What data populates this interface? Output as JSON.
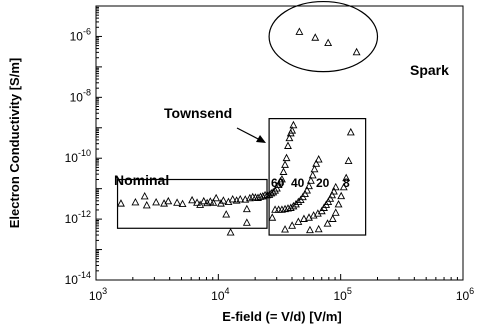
{
  "chart_data": {
    "type": "scatter",
    "title": "",
    "xlabel": "E-field (= V/d) [V/m]",
    "ylabel": "Electron Conductivity [S/m]",
    "xscale": "log",
    "yscale": "log",
    "xlim": [
      1000,
      1000000
    ],
    "ylim": [
      1e-14,
      1e-05
    ],
    "x_ticks": [
      {
        "value": 1000,
        "base": "10",
        "exp": "3"
      },
      {
        "value": 10000,
        "base": "10",
        "exp": "4"
      },
      {
        "value": 100000,
        "base": "10",
        "exp": "5"
      },
      {
        "value": 1000000,
        "base": "10",
        "exp": "6"
      }
    ],
    "y_ticks": [
      {
        "value": 1e-14,
        "base": "10",
        "exp": "-14"
      },
      {
        "value": 1e-12,
        "base": "10",
        "exp": "-12"
      },
      {
        "value": 1e-10,
        "base": "10",
        "exp": "-10"
      },
      {
        "value": 1e-08,
        "base": "10",
        "exp": "-8"
      },
      {
        "value": 1e-06,
        "base": "10",
        "exp": "-6"
      }
    ],
    "grid": false,
    "marker": "open-triangle",
    "regions": [
      {
        "label": "Nominal",
        "shape": "rectangle",
        "x_range": [
          1500,
          25000
        ],
        "y_range": [
          5e-13,
          2e-11
        ]
      },
      {
        "label": "Townsend",
        "shape": "rectangle",
        "x_range": [
          26000,
          160000
        ],
        "y_range": [
          3e-13,
          2e-09
        ]
      },
      {
        "label": "Spark",
        "shape": "ellipse",
        "x_range": [
          26000,
          200000
        ],
        "y_range": [
          7e-08,
          1.4e-05
        ]
      }
    ],
    "annotations": [
      "60",
      "40",
      "20",
      "8"
    ],
    "points": [
      {
        "x": 1600,
        "y": 3.2e-12
      },
      {
        "x": 2100,
        "y": 3.5e-12
      },
      {
        "x": 2500,
        "y": 5.5e-12
      },
      {
        "x": 2600,
        "y": 2.8e-12
      },
      {
        "x": 3100,
        "y": 3.5e-12
      },
      {
        "x": 3600,
        "y": 3.2e-12
      },
      {
        "x": 3900,
        "y": 3.8e-12
      },
      {
        "x": 4600,
        "y": 3.4e-12
      },
      {
        "x": 5100,
        "y": 3.1e-12
      },
      {
        "x": 6100,
        "y": 4.1e-12
      },
      {
        "x": 6700,
        "y": 3.4e-12
      },
      {
        "x": 7100,
        "y": 2.9e-12
      },
      {
        "x": 7600,
        "y": 3.8e-12
      },
      {
        "x": 8100,
        "y": 3.3e-12
      },
      {
        "x": 8600,
        "y": 3.7e-12
      },
      {
        "x": 9100,
        "y": 3.4e-12
      },
      {
        "x": 9600,
        "y": 4.8e-12
      },
      {
        "x": 10500,
        "y": 3.2e-12
      },
      {
        "x": 11000,
        "y": 4e-12
      },
      {
        "x": 11600,
        "y": 1.4e-12
      },
      {
        "x": 12100,
        "y": 3.6e-12
      },
      {
        "x": 13100,
        "y": 4.4e-12
      },
      {
        "x": 14100,
        "y": 4e-12
      },
      {
        "x": 15100,
        "y": 4.4e-12
      },
      {
        "x": 16600,
        "y": 4.3e-12
      },
      {
        "x": 17100,
        "y": 2.1e-12
      },
      {
        "x": 18100,
        "y": 4.8e-12
      },
      {
        "x": 19100,
        "y": 5.2e-12
      },
      {
        "x": 20100,
        "y": 5e-12
      },
      {
        "x": 21100,
        "y": 4.9e-12
      },
      {
        "x": 22100,
        "y": 5.3e-12
      },
      {
        "x": 23100,
        "y": 5.5e-12
      },
      {
        "x": 24100,
        "y": 6e-12
      },
      {
        "x": 25100,
        "y": 6e-12
      },
      {
        "x": 26100,
        "y": 6.2e-12
      },
      {
        "x": 27100,
        "y": 6.9e-12
      },
      {
        "x": 28100,
        "y": 7.5e-12
      },
      {
        "x": 29100,
        "y": 8.5e-12
      },
      {
        "x": 30100,
        "y": 1e-11
      },
      {
        "x": 31100,
        "y": 1.3e-11
      },
      {
        "x": 32100,
        "y": 1.7e-11
      },
      {
        "x": 33100,
        "y": 2e-11
      },
      {
        "x": 34100,
        "y": 3.5e-11
      },
      {
        "x": 35100,
        "y": 6e-11
      },
      {
        "x": 36100,
        "y": 1e-10
      },
      {
        "x": 37100,
        "y": 2.5e-10
      },
      {
        "x": 38100,
        "y": 4.5e-10
      },
      {
        "x": 39100,
        "y": 6.5e-10
      },
      {
        "x": 40100,
        "y": 8e-10
      },
      {
        "x": 41100,
        "y": 1.2e-09
      },
      {
        "x": 12600,
        "y": 3.6e-13
      },
      {
        "x": 17100,
        "y": 7.5e-13
      },
      {
        "x": 27600,
        "y": 1.1e-12
      },
      {
        "x": 29100,
        "y": 2e-12
      },
      {
        "x": 31100,
        "y": 2e-12
      },
      {
        "x": 33100,
        "y": 2e-12
      },
      {
        "x": 35100,
        "y": 2.1e-12
      },
      {
        "x": 37100,
        "y": 2.2e-12
      },
      {
        "x": 39100,
        "y": 2.3e-12
      },
      {
        "x": 41100,
        "y": 2.6e-12
      },
      {
        "x": 43100,
        "y": 3e-12
      },
      {
        "x": 45100,
        "y": 3.6e-12
      },
      {
        "x": 47100,
        "y": 4.2e-12
      },
      {
        "x": 49100,
        "y": 5.2e-12
      },
      {
        "x": 51100,
        "y": 6.6e-12
      },
      {
        "x": 53100,
        "y": 8.6e-12
      },
      {
        "x": 55100,
        "y": 1.2e-11
      },
      {
        "x": 57100,
        "y": 1.8e-11
      },
      {
        "x": 59100,
        "y": 2.7e-11
      },
      {
        "x": 61100,
        "y": 4.3e-11
      },
      {
        "x": 63100,
        "y": 6.5e-11
      },
      {
        "x": 66100,
        "y": 9e-11
      },
      {
        "x": 35100,
        "y": 4.5e-13
      },
      {
        "x": 40100,
        "y": 6e-13
      },
      {
        "x": 45100,
        "y": 8e-13
      },
      {
        "x": 50100,
        "y": 1e-12
      },
      {
        "x": 55100,
        "y": 1.1e-12
      },
      {
        "x": 60100,
        "y": 1.3e-12
      },
      {
        "x": 65100,
        "y": 1.5e-12
      },
      {
        "x": 70100,
        "y": 1.8e-12
      },
      {
        "x": 73100,
        "y": 2.3e-12
      },
      {
        "x": 76100,
        "y": 2.9e-12
      },
      {
        "x": 79100,
        "y": 3.6e-12
      },
      {
        "x": 82100,
        "y": 4.6e-12
      },
      {
        "x": 85100,
        "y": 6e-12
      },
      {
        "x": 88100,
        "y": 8e-12
      },
      {
        "x": 91100,
        "y": 1.1e-11
      },
      {
        "x": 56100,
        "y": 4.3e-13
      },
      {
        "x": 66100,
        "y": 4.6e-13
      },
      {
        "x": 78100,
        "y": 7e-13
      },
      {
        "x": 86100,
        "y": 1e-12
      },
      {
        "x": 91100,
        "y": 1.6e-12
      },
      {
        "x": 96100,
        "y": 3e-12
      },
      {
        "x": 101000,
        "y": 5.6e-12
      },
      {
        "x": 106000,
        "y": 1.1e-11
      },
      {
        "x": 111000,
        "y": 2.2e-11
      },
      {
        "x": 116000,
        "y": 8e-11
      },
      {
        "x": 121000,
        "y": 7e-10
      },
      {
        "x": 46000,
        "y": 1.4e-06
      },
      {
        "x": 62000,
        "y": 9e-07
      },
      {
        "x": 79000,
        "y": 6e-07
      },
      {
        "x": 135000,
        "y": 3e-07
      }
    ]
  }
}
